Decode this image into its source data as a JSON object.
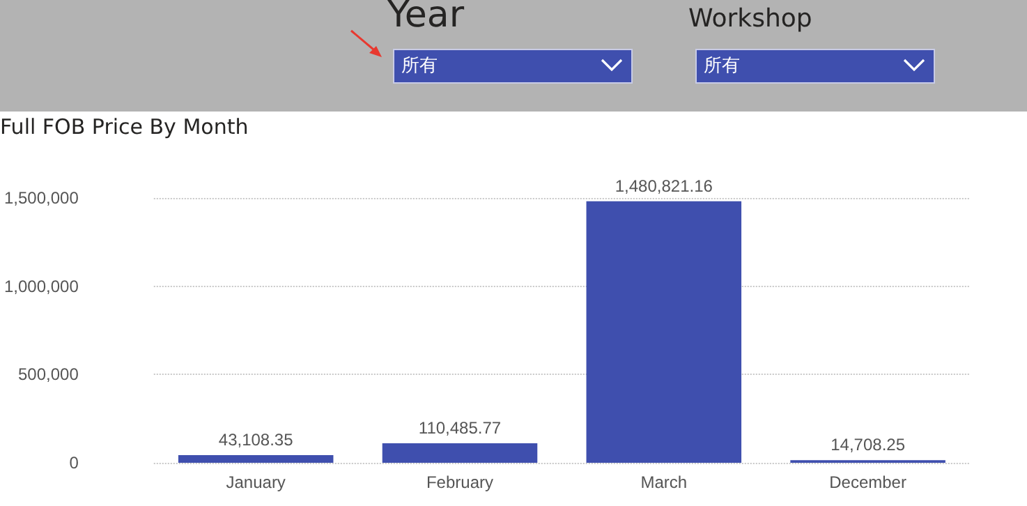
{
  "chart_data": {
    "type": "bar",
    "title": "Full FOB Price By Month",
    "annotations": [
      "Year",
      "所有",
      "Workshop",
      "所有"
    ],
    "categories": [
      "January",
      "February",
      "March",
      "December"
    ],
    "values": [
      43108.35,
      110485.77,
      1480821.16,
      14708.25
    ],
    "value_labels": [
      "43,108.35",
      "110,485.77",
      "1,480,821.16",
      "14,708.25"
    ],
    "color": "#3f4fae",
    "ylim": [
      0,
      1500000
    ],
    "yticks": [
      {
        "value": 0,
        "label": "0"
      },
      {
        "value": 500000,
        "label": "500,000"
      },
      {
        "value": 1000000,
        "label": "1,000,000"
      },
      {
        "value": 1500000,
        "label": "1,500,000"
      }
    ],
    "grid": "y"
  }
}
